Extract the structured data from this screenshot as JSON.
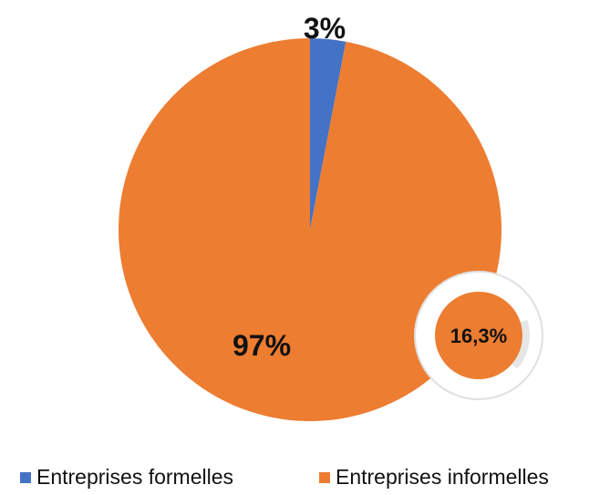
{
  "chart_data": {
    "type": "pie",
    "title": "",
    "slices": [
      {
        "label": "Entreprises formelles",
        "value": 3,
        "display": "3%",
        "color": "#4472C4"
      },
      {
        "label": "Entreprises informelles",
        "value": 97,
        "display": "97%",
        "color": "#ED7D31"
      }
    ],
    "legend_position": "bottom",
    "inset_donut": {
      "value_display": "16,3%",
      "value": 16.3,
      "ring_color": "#E6E6E6",
      "center_color": "#ED7D31"
    }
  }
}
